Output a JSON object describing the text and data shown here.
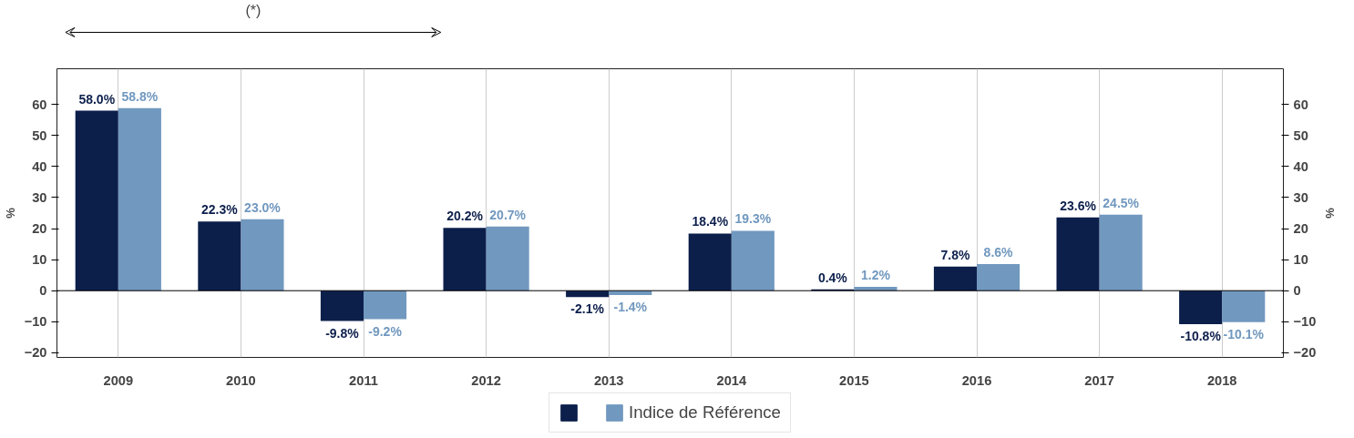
{
  "chart_data": {
    "type": "bar",
    "categories": [
      "2009",
      "2010",
      "2011",
      "2012",
      "2013",
      "2014",
      "2015",
      "2016",
      "2017",
      "2018"
    ],
    "series": [
      {
        "color": "#0c1f4b",
        "values": [
          58.0,
          22.3,
          -9.8,
          20.2,
          -2.1,
          18.4,
          0.4,
          7.8,
          23.6,
          -10.8
        ],
        "value_labels": [
          "58.0%",
          "22.3%",
          "-9.8%",
          "20.2%",
          "-2.1%",
          "18.4%",
          "0.4%",
          "7.8%",
          "23.6%",
          "-10.8%"
        ]
      },
      {
        "name": "Indice de Référence",
        "color": "#7198bf",
        "values": [
          58.8,
          23.0,
          -9.2,
          20.7,
          -1.4,
          19.3,
          1.2,
          8.6,
          24.5,
          -10.1
        ],
        "value_labels": [
          "58.8%",
          "23.0%",
          "-9.2%",
          "20.7%",
          "-1.4%",
          "19.3%",
          "1.2%",
          "8.6%",
          "24.5%",
          "-10.1%"
        ]
      }
    ],
    "ylabel": "%",
    "y2label": "%",
    "ylim": [
      -21.5,
      71.5
    ],
    "yticks": [
      -20,
      -10,
      0,
      10,
      20,
      30,
      40,
      50,
      60
    ],
    "y2lim": [
      -21.5,
      71.5
    ],
    "y2ticks": [
      -20,
      -10,
      0,
      10,
      20,
      30,
      40,
      50,
      60
    ],
    "ref_lines": [
      {
        "axis": "y",
        "value": 0,
        "color": "#000000"
      }
    ],
    "annotations": [
      "(*)"
    ],
    "grid": "x",
    "legend": "bottom"
  }
}
